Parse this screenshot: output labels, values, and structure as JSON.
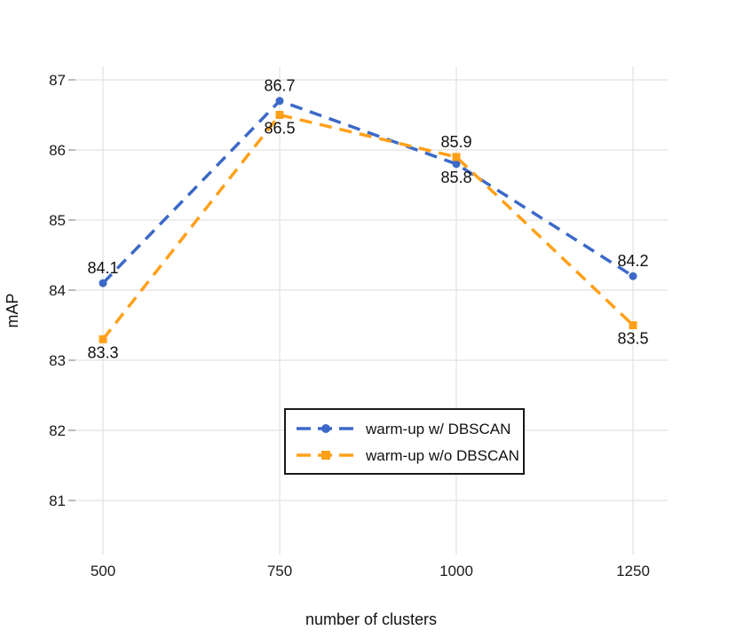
{
  "chart_data": {
    "type": "line",
    "title": "",
    "xlabel": "number of clusters",
    "ylabel": "mAP",
    "x": [
      500,
      750,
      1000,
      1250
    ],
    "xtick_labels": [
      "500",
      "750",
      "1000",
      "1250"
    ],
    "yticks": [
      81,
      82,
      83,
      84,
      85,
      86,
      87
    ],
    "ylim": [
      80.2,
      87.2
    ],
    "xlim": [
      460,
      1300
    ],
    "grid": "both-major-light-gray",
    "background": "#ffffff",
    "series": [
      {
        "name": "warm-up w/ DBSCAN",
        "color": "#3C69C8",
        "marker": "circle",
        "linestyle": "dashed",
        "values": [
          84.1,
          86.7,
          85.8,
          84.2
        ],
        "point_labels": [
          "84.1",
          "86.7",
          "85.8",
          "84.2"
        ],
        "label_side": [
          "above",
          "above",
          "below",
          "above"
        ]
      },
      {
        "name": "warm-up w/o DBSCAN",
        "color": "#FFA019",
        "marker": "square",
        "linestyle": "dashed",
        "values": [
          83.3,
          86.5,
          85.9,
          83.5
        ],
        "point_labels": [
          "83.3",
          "86.5",
          "85.9",
          "83.5"
        ],
        "label_side": [
          "below",
          "below",
          "above",
          "below"
        ]
      }
    ],
    "legend": {
      "position": "inside-lower-center",
      "border_color": "#1a1a1a",
      "entries": [
        "warm-up w/ DBSCAN",
        "warm-up w/o DBSCAN"
      ]
    },
    "colors": {
      "grid": "#e7e7e7",
      "axis_tick": "#a6a6a6",
      "text": "#1a1a1a"
    }
  }
}
